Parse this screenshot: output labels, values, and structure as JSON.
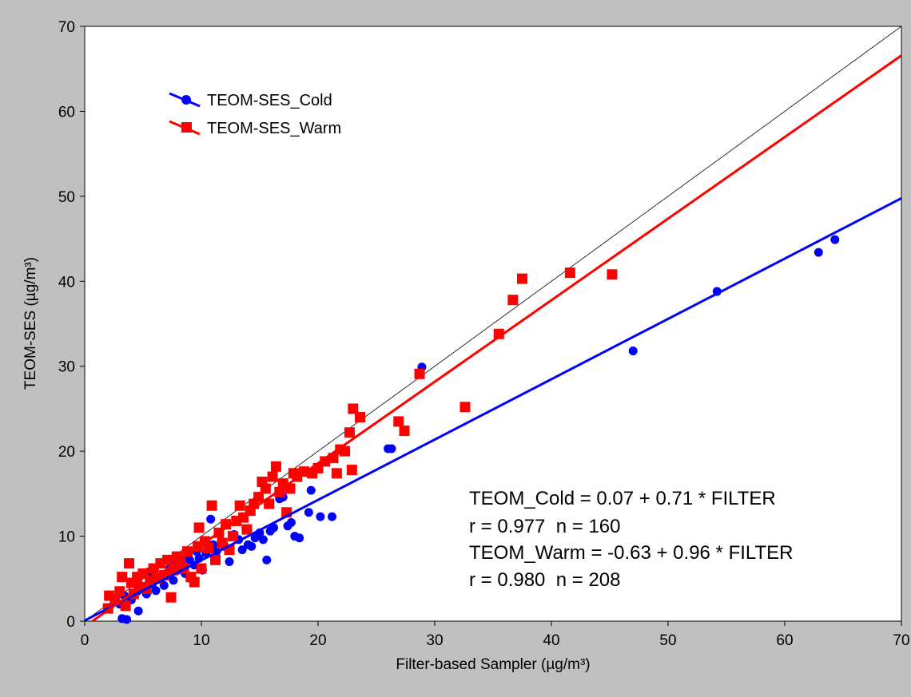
{
  "chart_data": {
    "type": "scatter",
    "xlabel": "Filter-based Sampler (µg/m³)",
    "ylabel": "TEOM-SES (µg/m³)",
    "xlim": [
      0,
      70
    ],
    "ylim": [
      0,
      70
    ],
    "x_ticks": [
      0,
      10,
      20,
      30,
      40,
      50,
      60,
      70
    ],
    "y_ticks": [
      0,
      10,
      20,
      30,
      40,
      50,
      60,
      70
    ],
    "grid": false,
    "legend_position": "top-left",
    "reference_line": {
      "type": "1:1",
      "color": "#000000"
    },
    "series": [
      {
        "name": "TEOM-SES_Cold",
        "color": "#0000ff",
        "marker": "circle",
        "fit": {
          "intercept": 0.07,
          "slope": 0.71
        },
        "points": [
          [
            3.2,
            0.3
          ],
          [
            3.6,
            0.2
          ],
          [
            4.6,
            1.2
          ],
          [
            3.0,
            2.0
          ],
          [
            3.4,
            3.0
          ],
          [
            4.0,
            2.5
          ],
          [
            4.5,
            3.5
          ],
          [
            5.0,
            4.0
          ],
          [
            5.3,
            3.2
          ],
          [
            5.8,
            4.4
          ],
          [
            6.1,
            3.6
          ],
          [
            6.4,
            5.0
          ],
          [
            6.8,
            4.2
          ],
          [
            7.0,
            5.5
          ],
          [
            7.3,
            6.2
          ],
          [
            7.6,
            4.8
          ],
          [
            8.0,
            6.0
          ],
          [
            8.3,
            6.8
          ],
          [
            8.6,
            5.6
          ],
          [
            9.0,
            7.2
          ],
          [
            9.4,
            6.6
          ],
          [
            9.8,
            7.4
          ],
          [
            10.1,
            6.0
          ],
          [
            10.4,
            8.0
          ],
          [
            10.7,
            8.6
          ],
          [
            11.0,
            9.0
          ],
          [
            11.3,
            8.2
          ],
          [
            11.7,
            9.4
          ],
          [
            12.0,
            8.8
          ],
          [
            12.4,
            7.0
          ],
          [
            12.8,
            10.2
          ],
          [
            13.2,
            9.6
          ],
          [
            13.5,
            8.4
          ],
          [
            14.0,
            9.0
          ],
          [
            14.3,
            8.8
          ],
          [
            14.6,
            9.8
          ],
          [
            15.0,
            10.4
          ],
          [
            15.3,
            9.6
          ],
          [
            15.6,
            7.2
          ],
          [
            15.9,
            10.6
          ],
          [
            16.2,
            11.0
          ],
          [
            16.7,
            14.4
          ],
          [
            17.0,
            14.6
          ],
          [
            17.4,
            11.2
          ],
          [
            17.7,
            11.6
          ],
          [
            18.0,
            10.0
          ],
          [
            18.4,
            9.8
          ],
          [
            19.2,
            12.8
          ],
          [
            19.4,
            15.4
          ],
          [
            20.2,
            12.3
          ],
          [
            21.2,
            12.3
          ],
          [
            10.8,
            12.0
          ],
          [
            5.5,
            5.8
          ],
          [
            6.0,
            6.2
          ],
          [
            7.8,
            7.0
          ],
          [
            8.8,
            7.8
          ],
          [
            9.6,
            8.2
          ],
          [
            26.0,
            20.3
          ],
          [
            26.3,
            20.3
          ],
          [
            28.9,
            29.9
          ],
          [
            47.0,
            31.8
          ],
          [
            54.2,
            38.8
          ],
          [
            62.9,
            43.4
          ],
          [
            64.3,
            44.9
          ]
        ]
      },
      {
        "name": "TEOM-SES_Warm",
        "color": "#ff0000",
        "marker": "square",
        "fit": {
          "intercept": -0.63,
          "slope": 0.96
        },
        "points": [
          [
            2.0,
            1.5
          ],
          [
            2.1,
            3.0
          ],
          [
            2.6,
            2.5
          ],
          [
            3.0,
            3.5
          ],
          [
            3.2,
            5.2
          ],
          [
            3.5,
            1.8
          ],
          [
            3.8,
            6.8
          ],
          [
            4.0,
            4.5
          ],
          [
            4.2,
            3.2
          ],
          [
            4.5,
            5.2
          ],
          [
            4.8,
            4.0
          ],
          [
            5.0,
            5.6
          ],
          [
            5.3,
            3.8
          ],
          [
            5.6,
            4.8
          ],
          [
            5.9,
            6.2
          ],
          [
            6.2,
            5.0
          ],
          [
            6.5,
            6.8
          ],
          [
            6.8,
            5.4
          ],
          [
            7.1,
            7.2
          ],
          [
            7.4,
            2.8
          ],
          [
            7.6,
            6.0
          ],
          [
            7.9,
            7.6
          ],
          [
            8.2,
            7.0
          ],
          [
            8.5,
            6.2
          ],
          [
            8.8,
            8.2
          ],
          [
            9.1,
            5.2
          ],
          [
            9.4,
            4.6
          ],
          [
            9.7,
            8.8
          ],
          [
            9.8,
            11.0
          ],
          [
            10.0,
            6.2
          ],
          [
            10.3,
            9.4
          ],
          [
            10.6,
            8.6
          ],
          [
            10.9,
            13.6
          ],
          [
            11.2,
            7.2
          ],
          [
            11.5,
            10.4
          ],
          [
            11.8,
            9.2
          ],
          [
            12.1,
            11.4
          ],
          [
            12.4,
            8.4
          ],
          [
            12.7,
            10.0
          ],
          [
            13.0,
            11.8
          ],
          [
            13.3,
            13.6
          ],
          [
            13.6,
            12.2
          ],
          [
            13.9,
            10.8
          ],
          [
            14.2,
            13.0
          ],
          [
            14.5,
            13.8
          ],
          [
            14.9,
            14.6
          ],
          [
            15.2,
            16.4
          ],
          [
            15.5,
            15.6
          ],
          [
            15.8,
            13.8
          ],
          [
            16.1,
            17.0
          ],
          [
            16.4,
            18.2
          ],
          [
            16.7,
            15.2
          ],
          [
            17.0,
            16.2
          ],
          [
            17.3,
            12.8
          ],
          [
            17.6,
            15.6
          ],
          [
            17.9,
            17.4
          ],
          [
            18.2,
            17.0
          ],
          [
            18.8,
            17.6
          ],
          [
            19.5,
            17.4
          ],
          [
            20.0,
            18.0
          ],
          [
            20.6,
            18.8
          ],
          [
            21.3,
            19.2
          ],
          [
            21.6,
            17.4
          ],
          [
            21.9,
            20.2
          ],
          [
            22.3,
            20.0
          ],
          [
            22.7,
            22.2
          ],
          [
            22.9,
            17.8
          ],
          [
            23.0,
            25.0
          ],
          [
            23.6,
            24.0
          ],
          [
            26.9,
            23.5
          ],
          [
            27.4,
            22.4
          ],
          [
            28.7,
            29.1
          ],
          [
            32.6,
            25.2
          ],
          [
            35.5,
            33.8
          ],
          [
            36.7,
            37.8
          ],
          [
            37.5,
            40.3
          ],
          [
            41.6,
            41.0
          ],
          [
            45.2,
            40.8
          ]
        ]
      }
    ],
    "annotations": [
      "TEOM_Cold = 0.07 + 0.71 * FILTER",
      "r = 0.977  n = 160",
      "TEOM_Warm = -0.63 + 0.96 * FILTER",
      "r = 0.980  n = 208"
    ]
  }
}
